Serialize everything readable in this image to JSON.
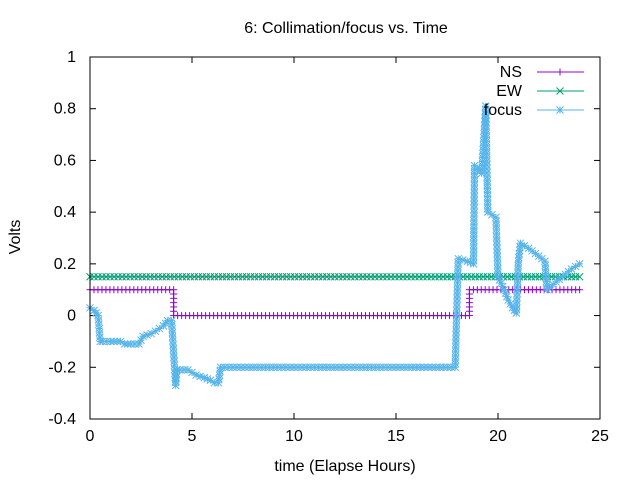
{
  "chart_data": {
    "type": "line",
    "title": "6: Collimation/focus vs. Time",
    "xlabel": "time (Elapse Hours)",
    "ylabel": "Volts",
    "xlim": [
      0,
      25
    ],
    "ylim": [
      -0.4,
      1
    ],
    "xticks": [
      0,
      5,
      10,
      15,
      20,
      25
    ],
    "yticks": [
      -0.4,
      -0.2,
      0,
      0.2,
      0.4,
      0.6,
      0.8,
      1
    ],
    "xtick_labels": [
      "0",
      "5",
      "10",
      "15",
      "20",
      "25"
    ],
    "ytick_labels": [
      "-0.4",
      "-0.2",
      "0",
      "0.2",
      "0.4",
      "0.6",
      "0.8",
      "1"
    ],
    "grid": false,
    "legend_position": "top-right",
    "series": [
      {
        "name": "NS",
        "color": "#9400d3",
        "marker": "plus",
        "x": [
          0,
          4.1,
          4.1,
          18.6,
          18.6,
          24
        ],
        "y": [
          0.1,
          0.1,
          0.0,
          0.0,
          0.1,
          0.1
        ]
      },
      {
        "name": "EW",
        "color": "#009e73",
        "marker": "x",
        "x": [
          0,
          24
        ],
        "y": [
          0.15,
          0.15
        ]
      },
      {
        "name": "focus",
        "color": "#56b4e9",
        "marker": "star",
        "x": [
          0,
          0.2,
          0.4,
          0.5,
          0.6,
          1.0,
          1.5,
          1.7,
          2.0,
          2.4,
          2.6,
          3.0,
          3.2,
          3.4,
          3.6,
          3.8,
          4.0,
          4.2,
          4.25,
          4.4,
          4.8,
          5.2,
          5.6,
          5.9,
          6.1,
          6.3,
          6.4,
          8.0,
          10.0,
          12.0,
          14.0,
          16.0,
          17.9,
          18.05,
          18.5,
          18.8,
          18.85,
          19.0,
          19.2,
          19.4,
          19.5,
          19.9,
          20.0,
          20.3,
          20.5,
          20.7,
          20.9,
          21.0,
          21.1,
          21.5,
          22.0,
          22.3,
          22.4,
          22.7,
          23.0,
          23.3,
          23.6,
          24.0
        ],
        "y": [
          0.03,
          0.02,
          0.0,
          -0.1,
          -0.1,
          -0.1,
          -0.1,
          -0.11,
          -0.11,
          -0.11,
          -0.08,
          -0.07,
          -0.06,
          -0.05,
          -0.04,
          -0.02,
          -0.02,
          -0.27,
          -0.21,
          -0.21,
          -0.21,
          -0.23,
          -0.24,
          -0.25,
          -0.26,
          -0.26,
          -0.2,
          -0.2,
          -0.2,
          -0.2,
          -0.2,
          -0.2,
          -0.2,
          0.22,
          0.21,
          0.2,
          0.58,
          0.57,
          0.55,
          0.81,
          0.4,
          0.38,
          0.15,
          0.1,
          0.06,
          0.03,
          0.01,
          0.21,
          0.28,
          0.26,
          0.23,
          0.21,
          0.1,
          0.12,
          0.14,
          0.16,
          0.18,
          0.2
        ]
      }
    ]
  }
}
